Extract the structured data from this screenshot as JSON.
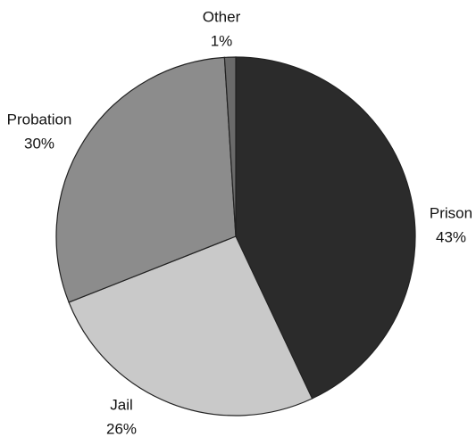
{
  "chart_data": {
    "type": "pie",
    "categories": [
      "Prison",
      "Jail",
      "Probation",
      "Other"
    ],
    "values": [
      43,
      26,
      30,
      1
    ],
    "value_labels": [
      "43%",
      "26%",
      "30%",
      "1%"
    ],
    "colors": [
      "#2b2b2b",
      "#c9c9c9",
      "#8c8c8c",
      "#6a6a6a"
    ]
  }
}
